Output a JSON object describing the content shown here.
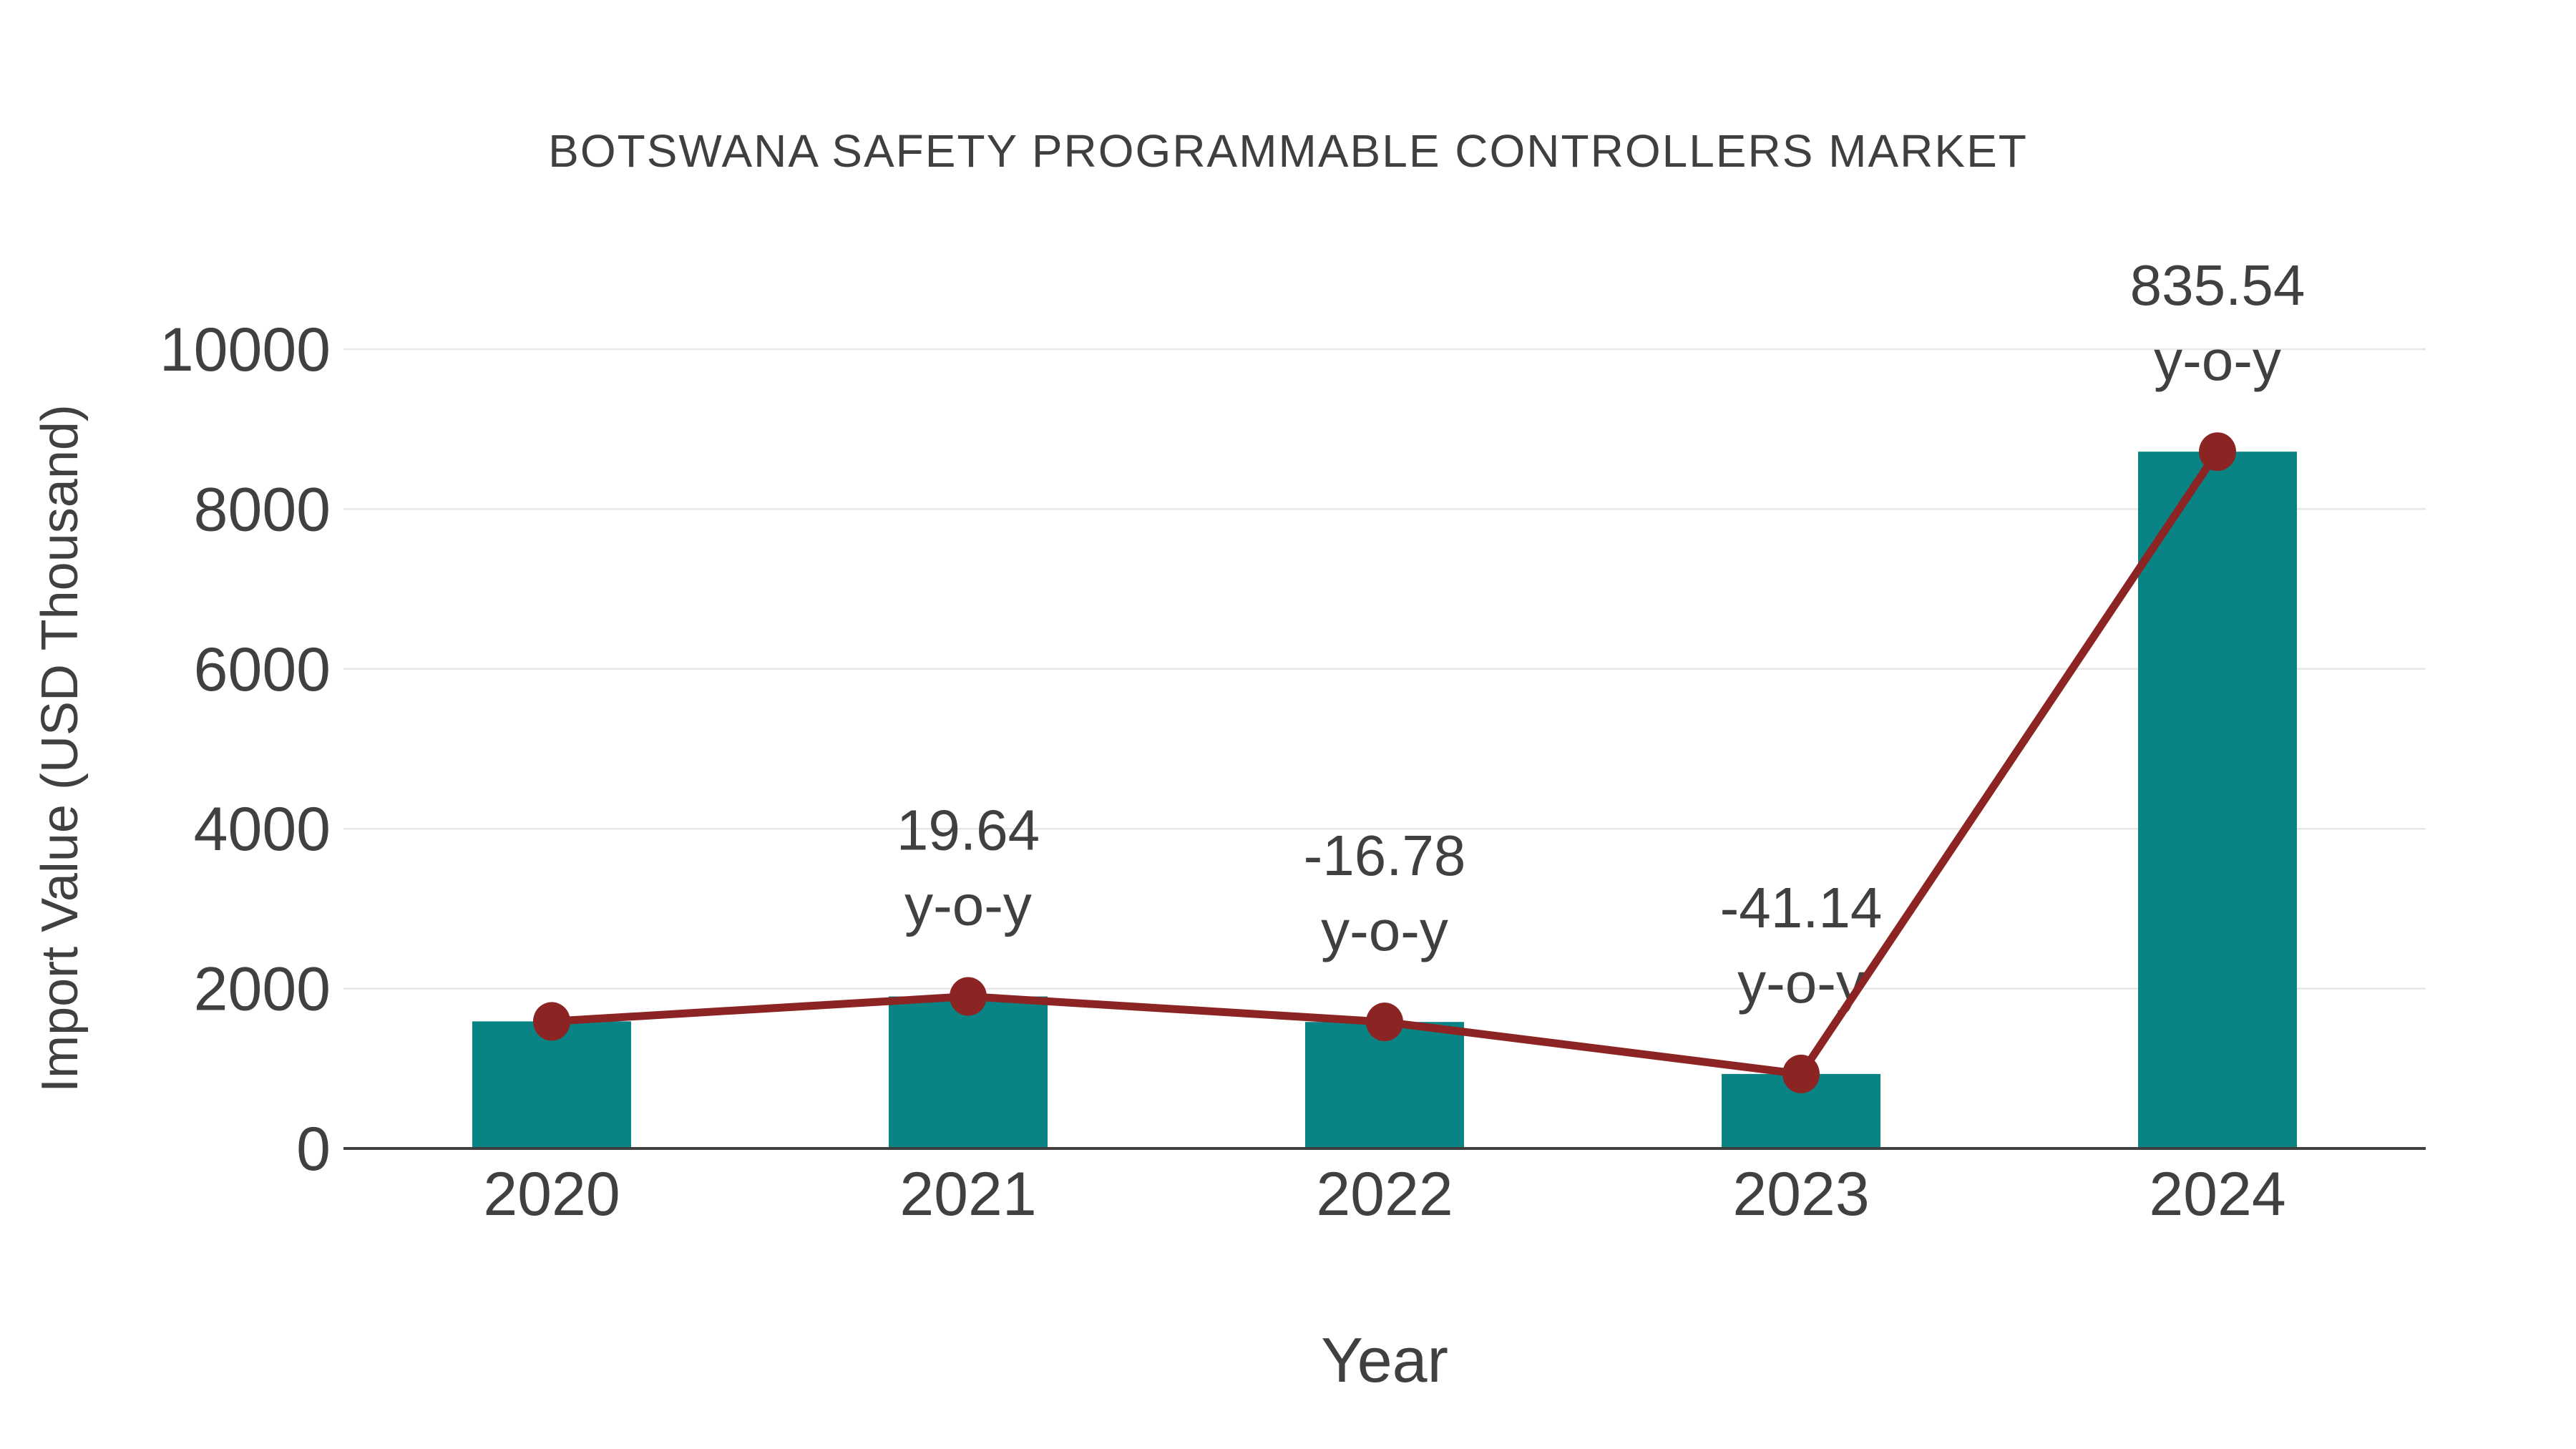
{
  "chart_data": {
    "type": "bar",
    "title": "BOTSWANA SAFETY PROGRAMMABLE CONTROLLERS MARKET",
    "xlabel": "Year",
    "ylabel": "Import Value (USD Thousand)",
    "categories": [
      "2020",
      "2021",
      "2022",
      "2023",
      "2024"
    ],
    "series": [
      {
        "name": "import-value-bars",
        "type": "bar",
        "color": "#0a8384",
        "values": [
          1590,
          1902,
          1583,
          932,
          8718
        ]
      },
      {
        "name": "import-value-trend",
        "type": "line",
        "color": "#8b2423",
        "values": [
          1590,
          1902,
          1583,
          932,
          8718
        ]
      }
    ],
    "annotations": [
      {
        "category": "2021",
        "line1": "19.64",
        "line2": "y-o-y"
      },
      {
        "category": "2022",
        "line1": "-16.78",
        "line2": "y-o-y"
      },
      {
        "category": "2023",
        "line1": "-41.14",
        "line2": "y-o-y"
      },
      {
        "category": "2024",
        "line1": "835.54",
        "line2": "y-o-y"
      }
    ],
    "ylim": [
      0,
      10000
    ],
    "yticks": [
      0,
      2000,
      4000,
      6000,
      8000,
      10000
    ],
    "grid": true,
    "legend": "none",
    "colors": {
      "text": "#404040",
      "grid": "#e7e7e7",
      "axis": "#3f3f3f"
    }
  }
}
